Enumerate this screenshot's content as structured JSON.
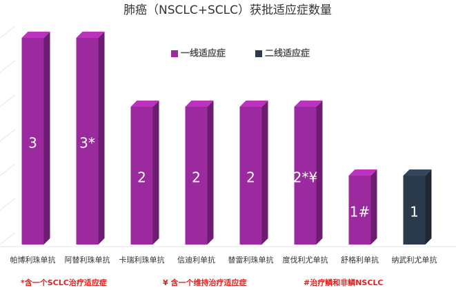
{
  "chart_data": {
    "type": "bar3d",
    "title": "肺癌（NSCLC+SCLC）获批适应症数量",
    "categories": [
      "帕博利珠单抗",
      "阿替利珠单抗",
      "卡瑞利珠单抗",
      "信迪利单抗",
      "替雷利珠单抗",
      "度伐利尤单抗",
      "舒格利单抗",
      "纳武利尤单抗"
    ],
    "series": [
      {
        "name": "一线适应症",
        "color": "#9b2a9e",
        "values": [
          3,
          3,
          2,
          2,
          2,
          2,
          1,
          null
        ],
        "value_labels": [
          "3",
          "3*",
          "2",
          "2",
          "2",
          "2*¥",
          "1#",
          null
        ]
      },
      {
        "name": "二线适应症",
        "color": "#2b3a4a",
        "values": [
          null,
          null,
          null,
          null,
          null,
          null,
          null,
          1
        ],
        "value_labels": [
          null,
          null,
          null,
          null,
          null,
          null,
          null,
          "1"
        ]
      }
    ],
    "ylim": [
      0,
      3
    ],
    "footnotes": [
      "*含一个SCLC治疗适应症",
      "¥ 含一个维持治疗适应症",
      "#治疗鳞和非鳞NSCLC"
    ]
  }
}
